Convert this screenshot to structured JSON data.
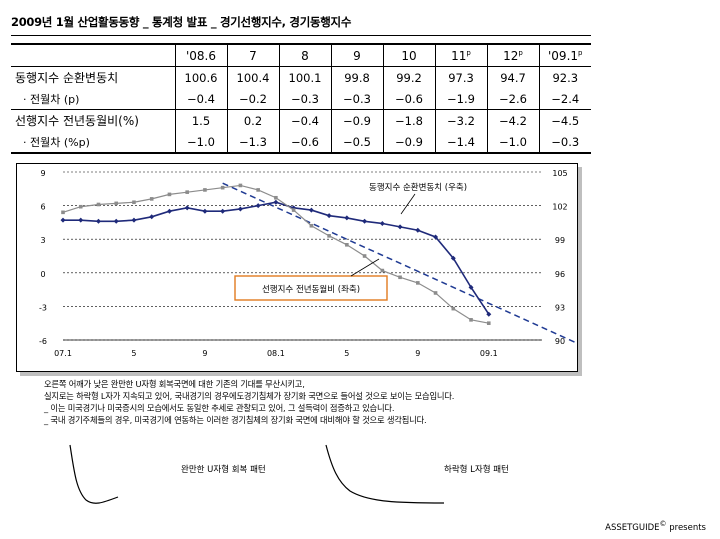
{
  "title": "2009년 1월 산업활동동향 _ 통계청 발표 _ 경기선행지수, 경기동행지수",
  "table": {
    "columns": [
      {
        "text": "'08.6",
        "sup": ""
      },
      {
        "text": "7",
        "sup": ""
      },
      {
        "text": "8",
        "sup": ""
      },
      {
        "text": "9",
        "sup": ""
      },
      {
        "text": "10",
        "sup": ""
      },
      {
        "text": "11",
        "sup": "p"
      },
      {
        "text": "12",
        "sup": "p"
      },
      {
        "text": "'09.1",
        "sup": "p"
      }
    ],
    "rows": [
      {
        "label": "동행지수 순환변동치",
        "sub": false,
        "values": [
          "100.6",
          "100.4",
          "100.1",
          "99.8",
          "99.2",
          "97.3",
          "94.7",
          "92.3"
        ]
      },
      {
        "label": "· 전월차 (p)",
        "sub": true,
        "values": [
          "−0.4",
          "−0.2",
          "−0.3",
          "−0.3",
          "−0.6",
          "−1.9",
          "−2.6",
          "−2.4"
        ]
      },
      {
        "label": "선행지수 전년동월비(%)",
        "sub": false,
        "values": [
          "1.5",
          "0.2",
          "−0.4",
          "−0.9",
          "−1.8",
          "−3.2",
          "−4.2",
          "−4.5"
        ]
      },
      {
        "label": "· 전월차 (%p)",
        "sub": true,
        "values": [
          "−1.0",
          "−1.3",
          "−0.6",
          "−0.5",
          "−0.9",
          "−1.4",
          "−1.0",
          "−0.3"
        ]
      }
    ]
  },
  "chart_data": {
    "type": "line",
    "x_tick_labels": [
      "07.1",
      "5",
      "9",
      "08.1",
      "5",
      "9",
      "09.1"
    ],
    "left_axis": {
      "ticks": [
        "9",
        "6",
        "3",
        "0",
        "-3",
        "-6"
      ],
      "range": [
        -6,
        9
      ]
    },
    "right_axis": {
      "ticks": [
        "105",
        "102",
        "99",
        "96",
        "93",
        "90"
      ],
      "range": [
        90,
        105
      ]
    },
    "series": [
      {
        "name": "동행지수 순환변동치 (우축)",
        "axis": "right",
        "color": "#1f2a7a",
        "x": [
          1,
          2,
          3,
          4,
          5,
          6,
          7,
          8,
          9,
          10,
          11,
          12,
          13,
          14,
          15,
          16,
          17,
          18,
          19,
          20,
          21,
          22,
          23,
          24,
          25
        ],
        "values": [
          100.7,
          100.7,
          100.6,
          100.6,
          100.7,
          101.0,
          101.5,
          101.8,
          101.5,
          101.5,
          101.7,
          102.0,
          102.3,
          101.8,
          101.6,
          101.1,
          100.9,
          100.6,
          100.4,
          100.1,
          99.8,
          99.2,
          97.3,
          94.7,
          92.3
        ]
      },
      {
        "name": "선행지수 전년동월비 (좌축)",
        "axis": "left",
        "color": "#8c8c8c",
        "x": [
          1,
          2,
          3,
          4,
          5,
          6,
          7,
          8,
          9,
          10,
          11,
          12,
          13,
          14,
          15,
          16,
          17,
          18,
          19,
          20,
          21,
          22,
          23,
          24,
          25
        ],
        "values": [
          5.4,
          5.9,
          6.1,
          6.2,
          6.3,
          6.6,
          7.0,
          7.2,
          7.4,
          7.6,
          7.8,
          7.4,
          6.7,
          5.6,
          4.2,
          3.3,
          2.5,
          1.5,
          0.2,
          -0.4,
          -0.9,
          -1.8,
          -3.2,
          -4.2,
          -4.5
        ]
      }
    ],
    "trend_line": {
      "x": [
        10,
        30
      ],
      "left_values": [
        8.0,
        -6.3
      ],
      "style": "dashed"
    },
    "annotations": [
      {
        "text": "동행지수 순환변동치 (우축)",
        "boxed": false
      },
      {
        "text": "선행지수 전년동월비 (좌축)",
        "boxed": true,
        "border_color": "#e07b1f"
      }
    ]
  },
  "description": [
    "오른쪽 어깨가 낮은 완만한 U자형 회복국면에 대한 기존의 기대를 무산시키고,",
    "실지로는 하락형 L자가 지속되고 있어, 국내경기의 경우에도경기침체가 장기화 국면으로 들어설 것으로 보이는 모습입니다.",
    "_ 이는 미국경기나 미국증시의 모습에서도 동일한 추세로 관찰되고 있어, 그 설득력이 점증하고 있습니다.",
    "_ 국내 경기주체들의 경우, 미국경기에 연동하는 이러한 경기침체의 장기화 국면에 대비해야 할 것으로 생각됩니다."
  ],
  "sketches": [
    {
      "label": "완만한 U자형 회복 패턴"
    },
    {
      "label": "하락형 L자형 패턴"
    }
  ],
  "credit": {
    "text": "ASSETGUIDE",
    "mark": "©",
    "suffix": " presents"
  }
}
